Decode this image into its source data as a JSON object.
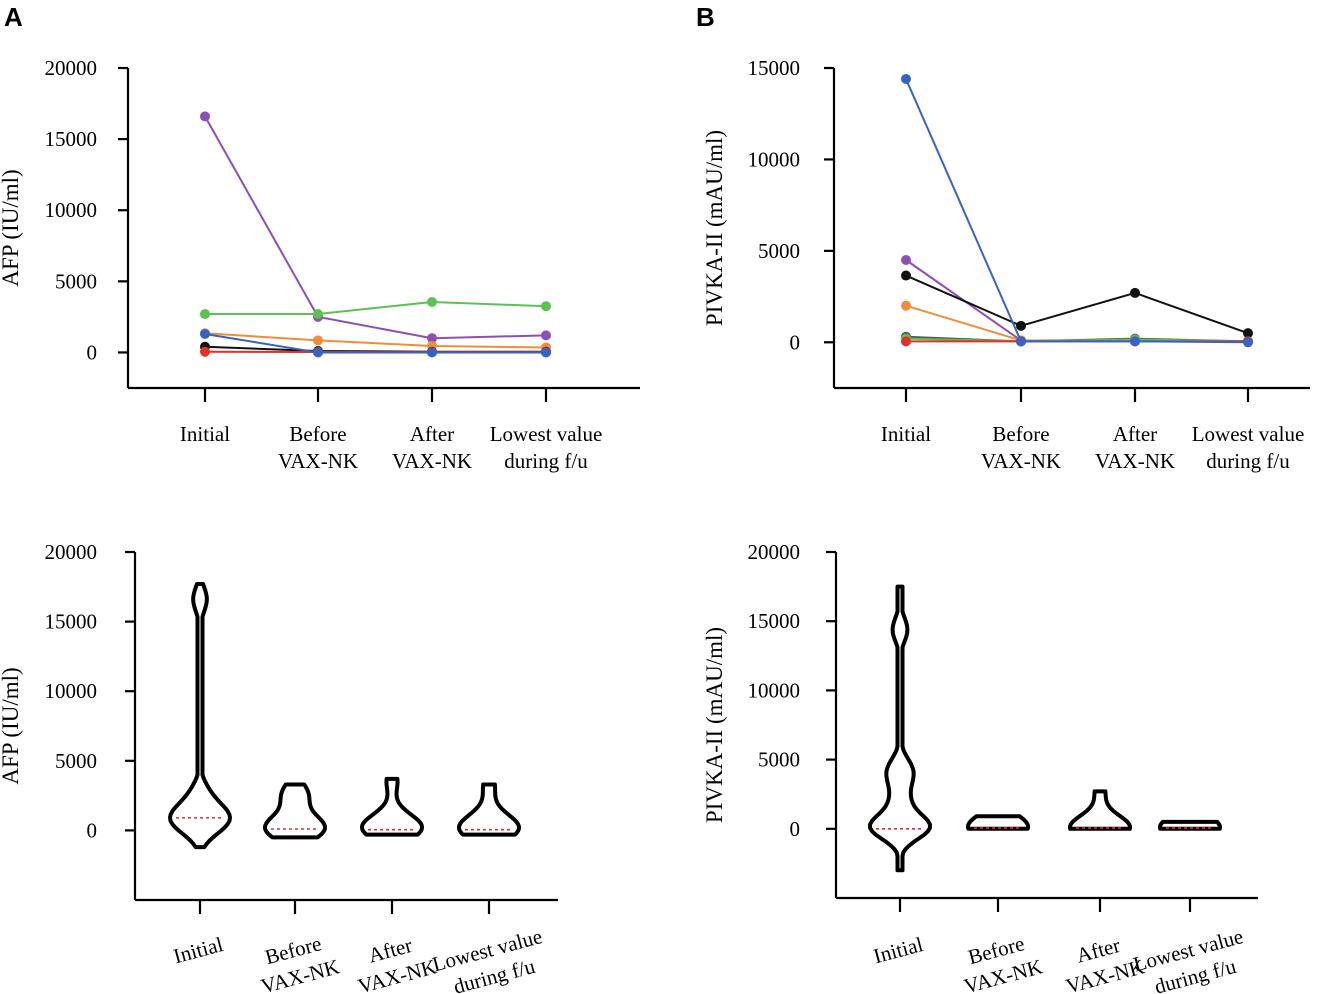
{
  "panels": {
    "A": "A",
    "B": "B"
  },
  "chart_data": [
    {
      "id": "A-top",
      "type": "line",
      "title": "",
      "xlabel": "",
      "ylabel": "AFP (IU/ml)",
      "ylim": [
        -2500,
        20000
      ],
      "yticks": [
        0,
        5000,
        10000,
        15000,
        20000
      ],
      "categories": [
        [
          "Initial"
        ],
        [
          "Before",
          "VAX-NK"
        ],
        [
          "After",
          "VAX-NK"
        ],
        [
          "Lowest value",
          "during f/u"
        ]
      ],
      "series": [
        {
          "name": "purple",
          "color": "#8e4fb5",
          "values": [
            16600,
            2500,
            1000,
            1200
          ]
        },
        {
          "name": "green",
          "color": "#5cc153",
          "values": [
            2700,
            2700,
            3550,
            3250
          ]
        },
        {
          "name": "orange",
          "color": "#f08d3a",
          "values": [
            1350,
            850,
            450,
            350
          ]
        },
        {
          "name": "black",
          "color": "#111111",
          "values": [
            400,
            100,
            50,
            50
          ]
        },
        {
          "name": "red",
          "color": "#e03127",
          "values": [
            50,
            30,
            20,
            20
          ]
        },
        {
          "name": "blue",
          "color": "#3a62c0",
          "values": [
            1300,
            0,
            0,
            0
          ]
        }
      ]
    },
    {
      "id": "B-top",
      "type": "line",
      "title": "",
      "xlabel": "",
      "ylabel": "PIVKA-II (mAU/ml)",
      "ylim": [
        -2500,
        15000
      ],
      "yticks": [
        0,
        5000,
        10000,
        15000
      ],
      "categories": [
        [
          "Initial"
        ],
        [
          "Before",
          "VAX-NK"
        ],
        [
          "After",
          "VAX-NK"
        ],
        [
          "Lowest value",
          "during f/u"
        ]
      ],
      "series": [
        {
          "name": "purple",
          "color": "#8e4fb5",
          "values": [
            4500,
            100,
            100,
            50
          ]
        },
        {
          "name": "black",
          "color": "#111111",
          "values": [
            3650,
            900,
            2700,
            500
          ]
        },
        {
          "name": "orange",
          "color": "#f08d3a",
          "values": [
            2000,
            100,
            100,
            50
          ]
        },
        {
          "name": "gray",
          "color": "#555555",
          "values": [
            300,
            50,
            200,
            50
          ]
        },
        {
          "name": "green",
          "color": "#5cc153",
          "values": [
            200,
            50,
            150,
            50
          ]
        },
        {
          "name": "red",
          "color": "#e03127",
          "values": [
            50,
            50,
            50,
            50
          ]
        },
        {
          "name": "blue",
          "color": "#3a62c0",
          "values": [
            14400,
            50,
            50,
            0
          ]
        }
      ]
    },
    {
      "id": "A-bottom",
      "type": "violin",
      "title": "",
      "xlabel": "",
      "ylabel": "AFP (IU/ml)",
      "ylim": [
        -5000,
        20000
      ],
      "yticks": [
        0,
        5000,
        10000,
        15000,
        20000
      ],
      "categories": [
        [
          "Initial"
        ],
        [
          "Before",
          "VAX-NK"
        ],
        [
          "After",
          "VAX-NK"
        ],
        [
          "Lowest value",
          "during f/u"
        ]
      ],
      "groups": [
        {
          "values": [
            16600,
            2700,
            1300,
            1350,
            400,
            50
          ],
          "median": 900,
          "range": [
            -1200,
            17700
          ]
        },
        {
          "values": [
            2700,
            2500,
            850,
            100,
            30,
            0
          ],
          "median": 100,
          "range": [
            -500,
            3300
          ]
        },
        {
          "values": [
            3550,
            1000,
            450,
            50,
            20,
            0
          ],
          "median": 50,
          "range": [
            -300,
            3700
          ]
        },
        {
          "values": [
            3250,
            1200,
            350,
            50,
            20,
            0
          ],
          "median": 50,
          "range": [
            -300,
            3300
          ]
        }
      ]
    },
    {
      "id": "B-bottom",
      "type": "violin",
      "title": "",
      "xlabel": "",
      "ylabel": "PIVKA-II (mAU/ml)",
      "ylim": [
        -5000,
        20000
      ],
      "yticks": [
        0,
        5000,
        10000,
        15000,
        20000
      ],
      "categories": [
        [
          "Initial"
        ],
        [
          "Before",
          "VAX-NK"
        ],
        [
          "After",
          "VAX-NK"
        ],
        [
          "Lowest value",
          "during f/u"
        ]
      ],
      "groups": [
        {
          "values": [
            14400,
            4500,
            3650,
            2000,
            300,
            200,
            50
          ],
          "median": 0,
          "range": [
            -3000,
            17500
          ]
        },
        {
          "values": [
            900,
            100,
            100,
            50,
            50,
            50
          ],
          "median": 50,
          "range": [
            0,
            900
          ]
        },
        {
          "values": [
            2700,
            200,
            150,
            100,
            100,
            50
          ],
          "median": 50,
          "range": [
            0,
            2700
          ]
        },
        {
          "values": [
            500,
            50,
            50,
            50,
            50,
            0
          ],
          "median": 50,
          "range": [
            0,
            500
          ]
        }
      ]
    }
  ]
}
